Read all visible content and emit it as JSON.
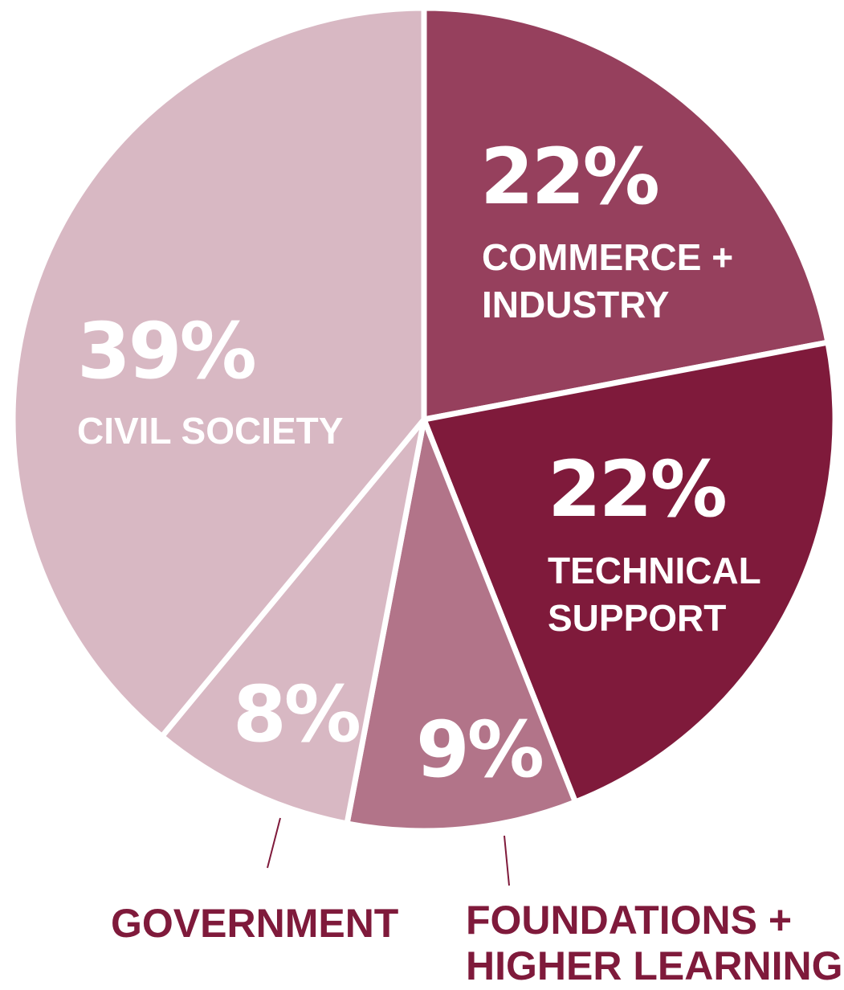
{
  "chart_data": {
    "type": "pie",
    "title": "",
    "slices": [
      {
        "label": "COMMERCE + INDUSTRY",
        "value": 22,
        "value_label": "22%",
        "color": "#96405d"
      },
      {
        "label": "TECHNICAL SUPPORT",
        "value": 22,
        "value_label": "22%",
        "color": "#7f1a3b"
      },
      {
        "label": "FOUNDATIONS + HIGHER LEARNING",
        "value": 9,
        "value_label": "9%",
        "color": "#b27489"
      },
      {
        "label": "GOVERNMENT",
        "value": 8,
        "value_label": "8%",
        "color": "#d8b8c3"
      },
      {
        "label": "CIVIL SOCIETY",
        "value": 39,
        "value_label": "39%",
        "color": "#d8b8c3"
      }
    ],
    "label_color": "#7f1a3b",
    "separator_color": "#ffffff"
  }
}
